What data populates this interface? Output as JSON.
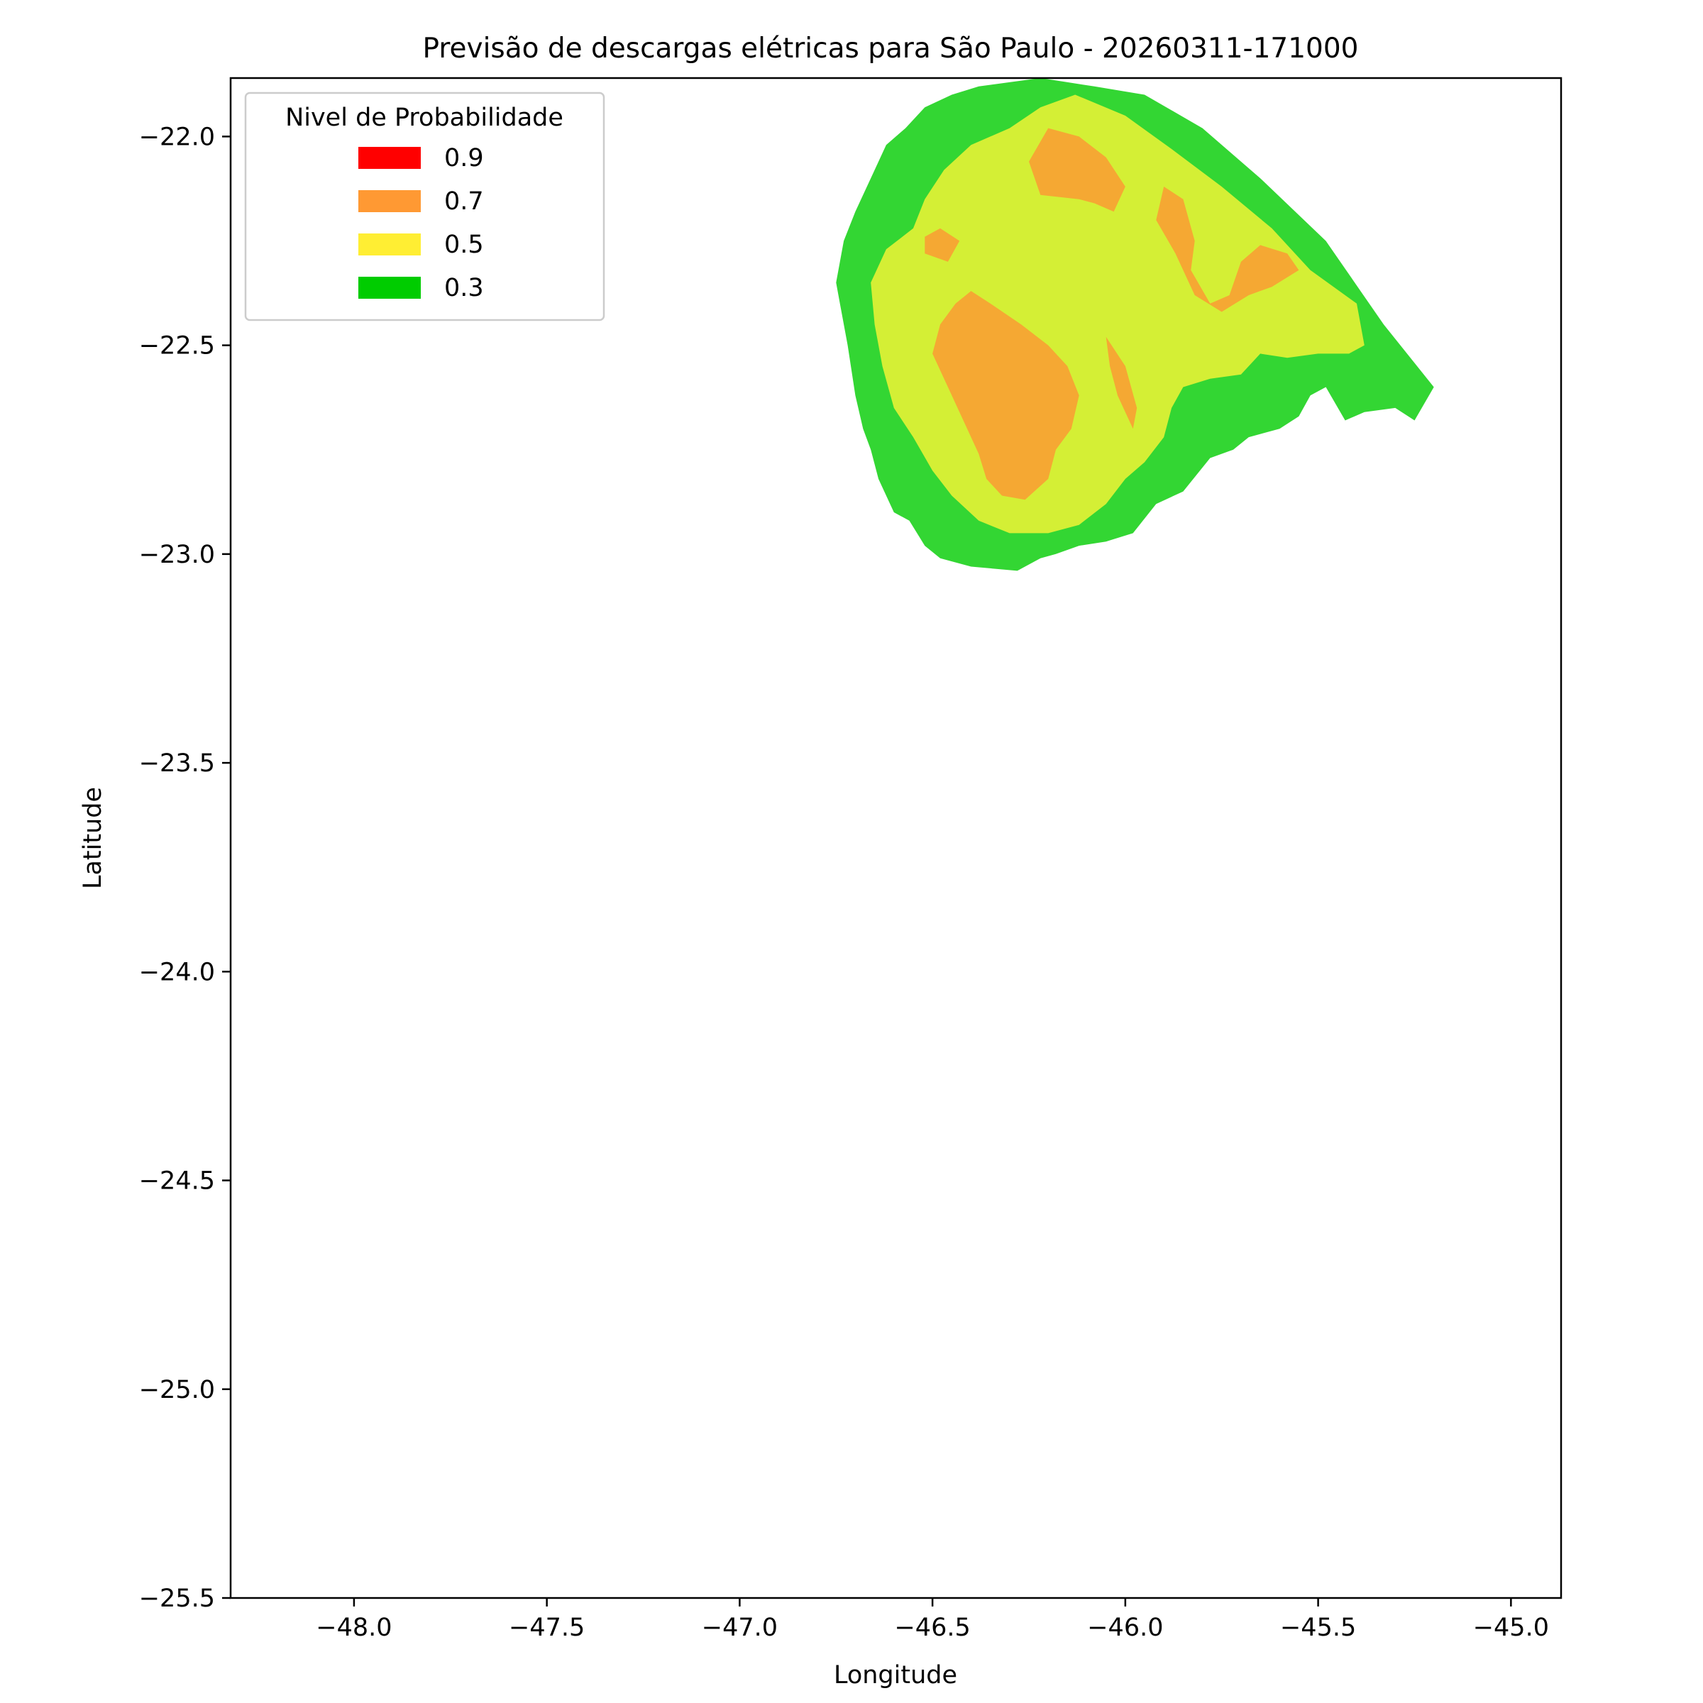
{
  "figure": {
    "title": "Previsão de descargas elétricas para São Paulo - 20260311-171000"
  },
  "axes": {
    "xlabel": "Longitude",
    "ylabel": "Latitude",
    "xlim": [
      -48.32,
      -44.87
    ],
    "ylim": [
      -25.5,
      -21.86
    ],
    "xticks": [
      -48.0,
      -47.5,
      -47.0,
      -46.5,
      -46.0,
      -45.5,
      -45.0
    ],
    "yticks": [
      -22.0,
      -22.5,
      -23.0,
      -23.5,
      -24.0,
      -24.5,
      -25.0,
      -25.5
    ],
    "xtick_labels": [
      "−48.0",
      "−47.5",
      "−47.0",
      "−46.5",
      "−46.0",
      "−45.5",
      "−45.0"
    ],
    "ytick_labels": [
      "−22.0",
      "−22.5",
      "−23.0",
      "−23.5",
      "−24.0",
      "−24.5",
      "−25.0",
      "−25.5"
    ]
  },
  "legend": {
    "title": "Nivel de Probabilidade",
    "position": "upper-left",
    "entries": [
      {
        "label": "0.9",
        "color": "#ff0000"
      },
      {
        "label": "0.7",
        "color": "#ff9933"
      },
      {
        "label": "0.5",
        "color": "#ffee33"
      },
      {
        "label": "0.3",
        "color": "#00cc00"
      }
    ]
  },
  "chart_data": {
    "type": "contour",
    "layers": [
      {
        "level": 0.3,
        "color": "#33d633",
        "polygons": [
          [
            [
              -46.08,
              -21.88
            ],
            [
              -45.95,
              -21.9
            ],
            [
              -45.8,
              -21.98
            ],
            [
              -45.65,
              -22.1
            ],
            [
              -45.48,
              -22.25
            ],
            [
              -45.33,
              -22.45
            ],
            [
              -45.2,
              -22.6
            ],
            [
              -45.25,
              -22.68
            ],
            [
              -45.3,
              -22.65
            ],
            [
              -45.38,
              -22.66
            ],
            [
              -45.43,
              -22.68
            ],
            [
              -45.48,
              -22.6
            ],
            [
              -45.52,
              -22.62
            ],
            [
              -45.55,
              -22.67
            ],
            [
              -45.6,
              -22.7
            ],
            [
              -45.68,
              -22.72
            ],
            [
              -45.72,
              -22.75
            ],
            [
              -45.78,
              -22.77
            ],
            [
              -45.85,
              -22.85
            ],
            [
              -45.92,
              -22.88
            ],
            [
              -45.98,
              -22.95
            ],
            [
              -46.05,
              -22.97
            ],
            [
              -46.12,
              -22.98
            ],
            [
              -46.18,
              -23.0
            ],
            [
              -46.22,
              -23.01
            ],
            [
              -46.28,
              -23.04
            ],
            [
              -46.4,
              -23.03
            ],
            [
              -46.48,
              -23.01
            ],
            [
              -46.52,
              -22.98
            ],
            [
              -46.56,
              -22.92
            ],
            [
              -46.6,
              -22.9
            ],
            [
              -46.64,
              -22.82
            ],
            [
              -46.66,
              -22.75
            ],
            [
              -46.68,
              -22.7
            ],
            [
              -46.7,
              -22.62
            ],
            [
              -46.72,
              -22.5
            ],
            [
              -46.74,
              -22.4
            ],
            [
              -46.75,
              -22.35
            ],
            [
              -46.73,
              -22.25
            ],
            [
              -46.7,
              -22.18
            ],
            [
              -46.66,
              -22.1
            ],
            [
              -46.62,
              -22.02
            ],
            [
              -46.57,
              -21.98
            ],
            [
              -46.52,
              -21.93
            ],
            [
              -46.45,
              -21.9
            ],
            [
              -46.38,
              -21.88
            ],
            [
              -46.3,
              -21.87
            ],
            [
              -46.22,
              -21.86
            ],
            [
              -46.15,
              -21.87
            ]
          ]
        ]
      },
      {
        "level": 0.5,
        "color": "#d4ef35",
        "polygons": [
          [
            [
              -46.13,
              -21.9
            ],
            [
              -46.0,
              -21.95
            ],
            [
              -45.88,
              -22.03
            ],
            [
              -45.75,
              -22.12
            ],
            [
              -45.62,
              -22.22
            ],
            [
              -45.52,
              -22.32
            ],
            [
              -45.4,
              -22.4
            ],
            [
              -45.38,
              -22.5
            ],
            [
              -45.42,
              -22.52
            ],
            [
              -45.5,
              -22.52
            ],
            [
              -45.58,
              -22.53
            ],
            [
              -45.65,
              -22.52
            ],
            [
              -45.7,
              -22.57
            ],
            [
              -45.78,
              -22.58
            ],
            [
              -45.85,
              -22.6
            ],
            [
              -45.88,
              -22.65
            ],
            [
              -45.9,
              -22.72
            ],
            [
              -45.95,
              -22.78
            ],
            [
              -46.0,
              -22.82
            ],
            [
              -46.05,
              -22.88
            ],
            [
              -46.12,
              -22.93
            ],
            [
              -46.2,
              -22.95
            ],
            [
              -46.3,
              -22.95
            ],
            [
              -46.38,
              -22.92
            ],
            [
              -46.45,
              -22.86
            ],
            [
              -46.5,
              -22.8
            ],
            [
              -46.55,
              -22.72
            ],
            [
              -46.6,
              -22.65
            ],
            [
              -46.63,
              -22.55
            ],
            [
              -46.65,
              -22.45
            ],
            [
              -46.66,
              -22.35
            ],
            [
              -46.62,
              -22.27
            ],
            [
              -46.55,
              -22.22
            ],
            [
              -46.52,
              -22.15
            ],
            [
              -46.47,
              -22.08
            ],
            [
              -46.4,
              -22.02
            ],
            [
              -46.3,
              -21.98
            ],
            [
              -46.22,
              -21.93
            ]
          ]
        ]
      },
      {
        "level": 0.7,
        "color": "#f5a833",
        "polygons": [
          [
            [
              -46.2,
              -21.98
            ],
            [
              -46.12,
              -22.0
            ],
            [
              -46.05,
              -22.05
            ],
            [
              -46.0,
              -22.12
            ],
            [
              -46.03,
              -22.18
            ],
            [
              -46.08,
              -22.16
            ],
            [
              -46.12,
              -22.15
            ],
            [
              -46.22,
              -22.14
            ],
            [
              -46.25,
              -22.06
            ]
          ],
          [
            [
              -45.9,
              -22.12
            ],
            [
              -45.85,
              -22.15
            ],
            [
              -45.82,
              -22.25
            ],
            [
              -45.83,
              -22.32
            ],
            [
              -45.78,
              -22.4
            ],
            [
              -45.73,
              -22.38
            ],
            [
              -45.7,
              -22.3
            ],
            [
              -45.65,
              -22.26
            ],
            [
              -45.58,
              -22.28
            ],
            [
              -45.55,
              -22.32
            ],
            [
              -45.62,
              -22.36
            ],
            [
              -45.68,
              -22.38
            ],
            [
              -45.75,
              -22.42
            ],
            [
              -45.82,
              -22.38
            ],
            [
              -45.87,
              -22.28
            ],
            [
              -45.92,
              -22.2
            ]
          ],
          [
            [
              -46.48,
              -22.22
            ],
            [
              -46.43,
              -22.25
            ],
            [
              -46.46,
              -22.3
            ],
            [
              -46.52,
              -22.28
            ],
            [
              -46.52,
              -22.24
            ]
          ],
          [
            [
              -46.4,
              -22.37
            ],
            [
              -46.35,
              -22.4
            ],
            [
              -46.27,
              -22.45
            ],
            [
              -46.2,
              -22.5
            ],
            [
              -46.15,
              -22.55
            ],
            [
              -46.12,
              -22.62
            ],
            [
              -46.14,
              -22.7
            ],
            [
              -46.18,
              -22.75
            ],
            [
              -46.2,
              -22.82
            ],
            [
              -46.26,
              -22.87
            ],
            [
              -46.32,
              -22.86
            ],
            [
              -46.36,
              -22.82
            ],
            [
              -46.38,
              -22.76
            ],
            [
              -46.42,
              -22.68
            ],
            [
              -46.46,
              -22.6
            ],
            [
              -46.5,
              -22.52
            ],
            [
              -46.48,
              -22.45
            ],
            [
              -46.44,
              -22.4
            ]
          ],
          [
            [
              -46.05,
              -22.48
            ],
            [
              -46.0,
              -22.55
            ],
            [
              -45.97,
              -22.65
            ],
            [
              -45.98,
              -22.7
            ],
            [
              -46.02,
              -22.62
            ],
            [
              -46.04,
              -22.55
            ]
          ]
        ]
      }
    ]
  }
}
